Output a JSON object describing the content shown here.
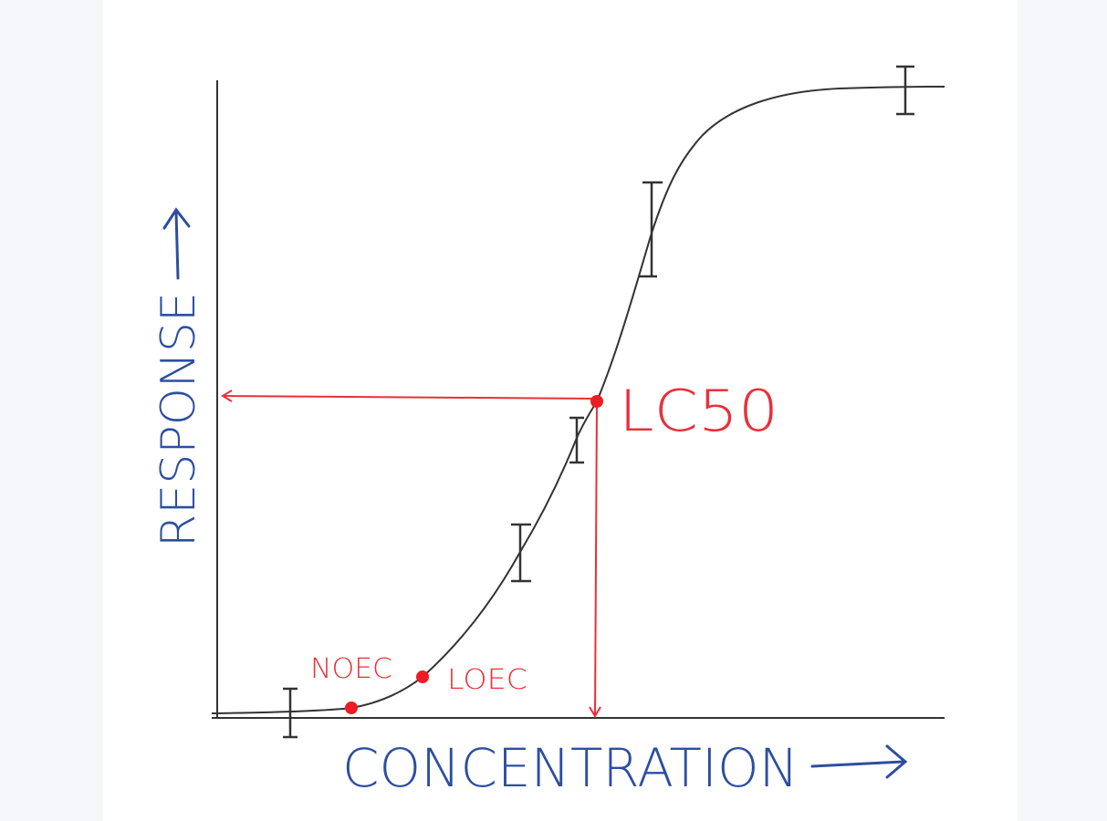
{
  "labels": {
    "y_axis": "RESPONSE",
    "x_axis": "CONCENTRATION",
    "lc50": "LC50",
    "noec": "NOEC",
    "loec": "LOEC"
  }
}
